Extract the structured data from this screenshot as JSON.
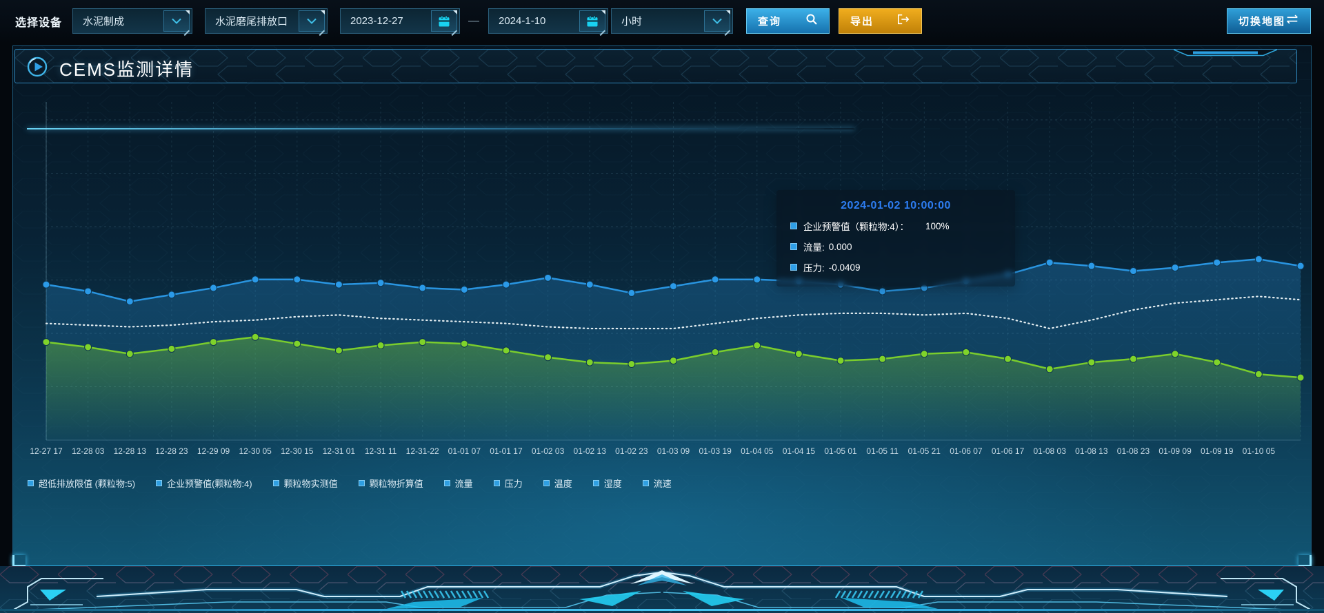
{
  "toolbar": {
    "device_label": "选择设备",
    "process_select": {
      "value": "水泥制成"
    },
    "outlet_select": {
      "value": "水泥磨尾排放口"
    },
    "start_date": {
      "value": "2023-12-27"
    },
    "date_separator": "—",
    "end_date": {
      "value": "2024-1-10"
    },
    "interval_select": {
      "value": "小时"
    },
    "query_button": {
      "label": "查询"
    },
    "export_button": {
      "label": "导出"
    },
    "switch_map_button": {
      "label": "切换地图"
    }
  },
  "panel": {
    "title": "CEMS监测详情"
  },
  "tooltip": {
    "timestamp": "2024-01-02 10:00:00",
    "items": [
      {
        "label": "企业预警值（颗粒物:4）：",
        "value": "100%"
      },
      {
        "label": "流量:",
        "value": "0.000"
      },
      {
        "label": "压力:",
        "value": "-0.0409"
      }
    ]
  },
  "legend": {
    "items": [
      "超低排放限值 (颗粒物:5)",
      "企业预警值(颗粒物:4)",
      "颗粒物实测值",
      "颗粒物折算值",
      "流量",
      "压力",
      "温度",
      "湿度",
      "流速"
    ]
  },
  "chart_data": {
    "type": "line",
    "title": "",
    "xlabel": "",
    "ylabel": "",
    "grid": "dashed",
    "legend_position": "bottom",
    "note": "y-axis is hidden in the UI; series values are relative heights (0=plot bottom, 100=plot top). 31 points; the 30 category labels align with the first 30 points.",
    "categories": [
      "12-27 17",
      "12-28 03",
      "12-28 13",
      "12-28 23",
      "12-29 09",
      "12-30 05",
      "12-30 15",
      "12-31 01",
      "12-31 11",
      "12-31-22",
      "01-01 07",
      "01-01 17",
      "01-02 03",
      "01-02 13",
      "01-02 23",
      "01-03 09",
      "01-03 19",
      "01-04 05",
      "01-04 15",
      "01-05 01",
      "01-05 11",
      "01-05 21",
      "01-06 07",
      "01-06 17",
      "01-08 03",
      "01-08 13",
      "01-08 23",
      "01-09 09",
      "01-09 19",
      "01-10 05"
    ],
    "series": [
      {
        "name": "企业预警值(颗粒物:4)",
        "color": "#2b9ae8",
        "style": "solid",
        "points": true,
        "area": true,
        "values": [
          46,
          44,
          41,
          43,
          45,
          47.5,
          47.5,
          46,
          46.5,
          45,
          44.5,
          46,
          48,
          46,
          43.5,
          45.5,
          47.5,
          47.5,
          47,
          46,
          44,
          45,
          47,
          49,
          52.5,
          51.5,
          50,
          51,
          52.5,
          53.5,
          51.5
        ]
      },
      {
        "name": "压力",
        "color": "#eef5f8",
        "style": "dotted",
        "points": false,
        "area": false,
        "values": [
          34.5,
          34,
          33.5,
          34,
          35,
          35.5,
          36.5,
          37,
          36,
          35.5,
          35,
          34.5,
          33.5,
          33,
          33,
          33,
          34.5,
          36,
          37,
          37.5,
          37.5,
          37,
          37.5,
          36,
          33,
          35.5,
          38.5,
          40.5,
          41.5,
          42.5,
          41.5
        ]
      },
      {
        "name": "流量",
        "color": "#7fd32a",
        "style": "solid",
        "points": true,
        "area": true,
        "values": [
          29,
          27.5,
          25.5,
          27,
          29,
          30.5,
          28.5,
          26.5,
          28,
          29,
          28.5,
          26.5,
          24.5,
          23,
          22.5,
          23.5,
          26,
          28,
          25.5,
          23.5,
          24,
          25.5,
          26,
          24,
          21,
          23,
          24,
          25.5,
          23,
          19.5,
          18.5
        ]
      }
    ]
  },
  "colors": {
    "accent_blue": "#2b9ae8",
    "accent_green": "#7fd32a",
    "accent_cyan": "#19d2f2",
    "export_orange": "#e09a16",
    "tooltip_date": "#2d7df2",
    "panel_border": "#2fb0e6"
  }
}
